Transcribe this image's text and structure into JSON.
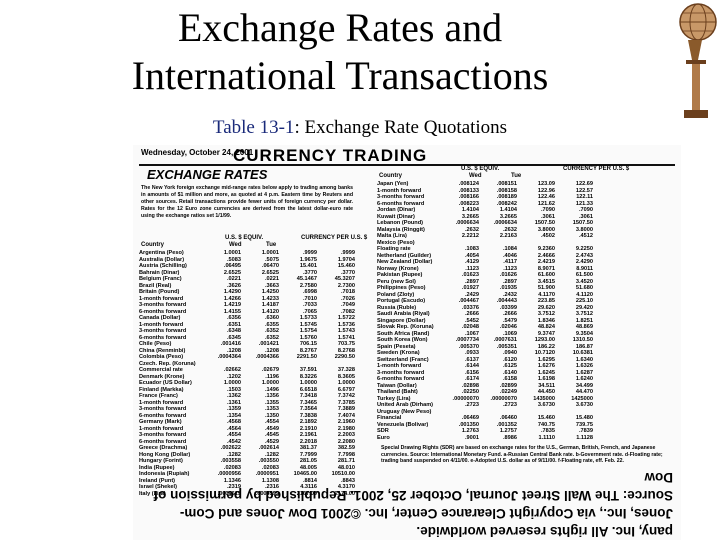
{
  "slide": {
    "title_line1": "Exchange Rates and",
    "title_line2": "International Transactions",
    "subtitle_label": "Table 13-1",
    "subtitle_text": ": Exchange Rate Quotations"
  },
  "scan": {
    "date": "Wednesday, October 24, 2001",
    "banner": "CURRENCY TRADING",
    "section_title": "EXCHANGE RATES",
    "intro": "The New York foreign exchange mid-range rates below apply to trading among banks in amounts of $1 million and more, as quoted at 4 p.m. Eastern time by Reuters and other sources. Retail transactions provide fewer units of foreign currency per dollar. Rates for the 12 Euro zone currencies are derived from the latest dollar-euro rate using the exchange ratios set 1/1/99.",
    "left_headers": {
      "usd": "U.S. $ EQUIV.",
      "per": "CURRENCY PER U.S. $",
      "country": "Country",
      "wed": "Wed",
      "tue": "Tue"
    },
    "right_headers": {
      "usd": "U.S. $ EQUIV.",
      "per": "CURRENCY PER U.S. $",
      "country": "Country",
      "wed": "Wed",
      "tue": "Tue"
    },
    "left_rows": [
      [
        "Argentina (Peso)",
        "1.0001",
        "1.0001",
        ".9999",
        ".9999"
      ],
      [
        "Australia (Dollar)",
        ".5083",
        ".5075",
        "1.9675",
        "1.9704"
      ],
      [
        "Austria (Schilling)",
        ".06495",
        ".06470",
        "15.401",
        "15.460"
      ],
      [
        "Bahrain (Dinar)",
        "2.6525",
        "2.6525",
        ".3770",
        ".3770"
      ],
      [
        "Belgium (Franc)",
        ".0221",
        ".0221",
        "45.1467",
        "45.3207"
      ],
      [
        "Brazil (Real)",
        ".3626",
        ".3663",
        "2.7580",
        "2.7300"
      ],
      [
        "Britain (Pound)",
        "1.4290",
        "1.4250",
        ".6998",
        ".7018"
      ],
      [
        "1-month forward",
        "1.4266",
        "1.4233",
        ".7010",
        ".7026"
      ],
      [
        "3-months forward",
        "1.4219",
        "1.4187",
        ".7033",
        ".7049"
      ],
      [
        "6-months forward",
        "1.4155",
        "1.4120",
        ".7065",
        ".7082"
      ],
      [
        "Canada (Dollar)",
        ".6356",
        ".6360",
        "1.5733",
        "1.5722"
      ],
      [
        "1-month forward",
        ".6351",
        ".6355",
        "1.5745",
        "1.5736"
      ],
      [
        "3-months forward",
        ".6348",
        ".6352",
        "1.5754",
        "1.5743"
      ],
      [
        "6-months forward",
        ".6345",
        ".6352",
        "1.5760",
        "1.5741"
      ],
      [
        "Chile (Peso)",
        ".001416",
        ".001421",
        "706.15",
        "703.75"
      ],
      [
        "China (Renminbi)",
        ".1208",
        ".1208",
        "8.2767",
        "8.2768"
      ],
      [
        "Colombia (Peso)",
        ".0004364",
        ".0004366",
        "2291.50",
        "2290.50"
      ],
      [
        "Czech. Rep. (Koruna)",
        "",
        "",
        "",
        ""
      ],
      [
        "Commercial rate",
        ".02662",
        ".02679",
        "37.591",
        "37.328"
      ],
      [
        "Denmark (Krone)",
        ".1202",
        ".1196",
        "8.3226",
        "8.3605"
      ],
      [
        "Ecuador (US Dollar)",
        "1.0000",
        "1.0000",
        "1.0000",
        "1.0000"
      ],
      [
        "Finland (Markka)",
        ".1503",
        ".1496",
        "6.6518",
        "6.6797"
      ],
      [
        "France (Franc)",
        ".1362",
        ".1356",
        "7.3418",
        "7.3742"
      ],
      [
        "1-month forward",
        ".1361",
        ".1355",
        "7.3465",
        "7.3785"
      ],
      [
        "3-months forward",
        ".1359",
        ".1353",
        "7.3564",
        "7.3889"
      ],
      [
        "6-months forward",
        ".1354",
        ".1350",
        "7.3838",
        "7.4074"
      ],
      [
        "Germany (Mark)",
        ".4568",
        ".4554",
        "2.1892",
        "2.1960"
      ],
      [
        "1-month forward",
        ".4564",
        ".4549",
        "2.1910",
        "2.1980"
      ],
      [
        "3-months forward",
        ".4554",
        ".4545",
        "2.1961",
        "2.2003"
      ],
      [
        "6-months forward",
        ".4542",
        ".4529",
        "2.2018",
        "2.2080"
      ],
      [
        "Greece (Drachma)",
        ".002622",
        ".002614",
        "381.37",
        "382.59"
      ],
      [
        "Hong Kong (Dollar)",
        ".1282",
        ".1282",
        "7.7999",
        "7.7998"
      ],
      [
        "Hungary (Forint)",
        ".003558",
        ".003550",
        "281.05",
        "281.71"
      ],
      [
        "India (Rupee)",
        ".02083",
        ".02083",
        "48.005",
        "48.010"
      ],
      [
        "Indonesia (Rupiah)",
        ".0000956",
        ".0000951",
        "10465.00",
        "10510.00"
      ],
      [
        "Ireland (Punt)",
        "1.1346",
        "1.1308",
        ".8814",
        ".8843"
      ],
      [
        "Israel (Shekel)",
        ".2319",
        ".2316",
        "4.3116",
        "4.3170"
      ],
      [
        "Italy (Lira)",
        ".0004615",
        ".0004599",
        "2167.00",
        "2174.00"
      ]
    ],
    "right_rows": [
      [
        "Japan (Yen)",
        ".008124",
        ".008151",
        "123.09",
        "122.69"
      ],
      [
        "1-month forward",
        ".008133",
        ".008158",
        "122.96",
        "122.57"
      ],
      [
        "3-months forward",
        ".008166",
        ".008189",
        "122.46",
        "122.11"
      ],
      [
        "6-months forward",
        ".008223",
        ".008242",
        "121.62",
        "121.33"
      ],
      [
        "Jordan (Dinar)",
        "1.4104",
        "1.4104",
        ".7090",
        ".7090"
      ],
      [
        "Kuwait (Dinar)",
        "3.2665",
        "3.2665",
        ".3061",
        ".3061"
      ],
      [
        "Lebanon (Pound)",
        ".0006634",
        ".0006634",
        "1507.50",
        "1507.50"
      ],
      [
        "Malaysia (Ringgit)",
        ".2632",
        ".2632",
        "3.8000",
        "3.8000"
      ],
      [
        "Malta (Lira)",
        "2.2212",
        "2.2163",
        ".4502",
        ".4512"
      ],
      [
        "Mexico (Peso)",
        "",
        "",
        "",
        ""
      ],
      [
        "Floating rate",
        ".1083",
        ".1084",
        "9.2360",
        "9.2250"
      ],
      [
        "Netherland (Guilder)",
        ".4054",
        ".4046",
        "2.4666",
        "2.4743"
      ],
      [
        "New Zealand (Dollar)",
        ".4129",
        ".4117",
        "2.4219",
        "2.4290"
      ],
      [
        "Norway (Krone)",
        ".1123",
        ".1123",
        "8.9071",
        "8.9011"
      ],
      [
        "Pakistan (Rupee)",
        ".01623",
        ".01626",
        "61.600",
        "61.500"
      ],
      [
        "Peru (new Sol)",
        ".2897",
        ".2897",
        "3.4515",
        "3.4520"
      ],
      [
        "Philippines (Peso)",
        ".01927",
        ".01935",
        "51.900",
        "51.680"
      ],
      [
        "Poland (Zloty)",
        ".2429",
        ".2432",
        "4.1170",
        "4.1120"
      ],
      [
        "Portugal (Escudo)",
        ".004467",
        ".004443",
        "223.85",
        "225.10"
      ],
      [
        "Russia (Ruble)",
        ".03376",
        ".03399",
        "29.620",
        "29.420"
      ],
      [
        "Saudi Arabia (Riyal)",
        ".2666",
        ".2666",
        "3.7512",
        "3.7512"
      ],
      [
        "Singapore (Dollar)",
        ".5452",
        ".5479",
        "1.8346",
        "1.8251"
      ],
      [
        "Slovak Rep. (Koruna)",
        ".02048",
        ".02046",
        "48.824",
        "48.869"
      ],
      [
        "South Africa (Rand)",
        ".1067",
        ".1069",
        "9.3747",
        "9.3504"
      ],
      [
        "South Korea (Won)",
        ".0007734",
        ".0007631",
        "1293.00",
        "1310.50"
      ],
      [
        "Spain (Peseta)",
        ".005370",
        ".005351",
        "186.22",
        "186.87"
      ],
      [
        "Sweden (Krona)",
        ".0933",
        ".0940",
        "10.7120",
        "10.6381"
      ],
      [
        "Switzerland (Franc)",
        ".6137",
        ".6120",
        "1.6295",
        "1.6340"
      ],
      [
        "1-month forward",
        ".6144",
        ".6125",
        "1.6276",
        "1.6326"
      ],
      [
        "3-months forward",
        ".6156",
        ".6140",
        "1.6245",
        "1.6287"
      ],
      [
        "6-months forward",
        ".6174",
        ".6158",
        "1.6198",
        "1.6240"
      ],
      [
        "Taiwan (Dollar)",
        ".02898",
        ".02899",
        "34.511",
        "34.499"
      ],
      [
        "Thailand (Baht)",
        ".02250",
        ".02249",
        "44.450",
        "44.470"
      ],
      [
        "Turkey (Lira)",
        ".00000070",
        ".00000070",
        "1435000",
        "1425000"
      ],
      [
        "United Arab (Dirham)",
        ".2723",
        ".2723",
        "3.6730",
        "3.6730"
      ],
      [
        "Uruguay (New Peso)",
        "",
        "",
        "",
        ""
      ],
      [
        "Financial",
        ".06469",
        ".06460",
        "15.460",
        "15.480"
      ],
      [
        "Venezuela (Bolivar)",
        ".001350",
        ".001352",
        "740.75",
        "739.75"
      ],
      [
        "",
        "",
        "",
        "",
        ""
      ],
      [
        "SDR",
        "1.2763",
        "1.2757",
        ".7835",
        ".7839"
      ],
      [
        "Euro",
        ".9001",
        ".8986",
        "1.1110",
        "1.1128"
      ]
    ],
    "note": "Special Drawing Rights (SDR) are based on exchange rates for the U.S., German, British, French, and Japanese currencies. Source: International Monetary Fund. a-Russian Central Bank rate. b-Government rate. d-Floating rate; trading band suspended on 4/11/00. e-Adopted U.S. dollar as of 9/11/00. f-Floating rate, eff. Feb. 22.",
    "footer_line1": "Source: The Wall Street Journal, October 25, 2001. Republished by permission of Dow",
    "footer_line2": "Jones, Inc., via Copyright Clearance Center, Inc. ©2001 Dow Jones and Com-",
    "footer_line3": "pany, Inc. All rights reserved worldwide."
  },
  "colors": {
    "subtitle_label": "#1a2a7a",
    "globe": "#8a5a2b"
  }
}
